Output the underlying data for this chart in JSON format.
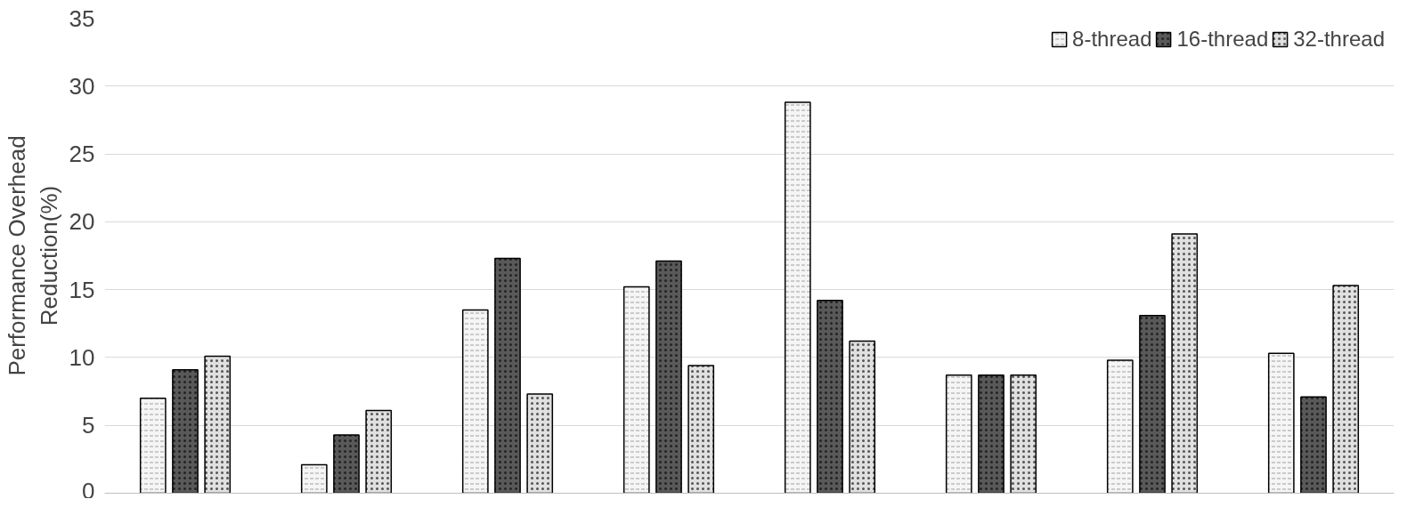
{
  "chart_data": {
    "type": "bar",
    "ylabel": "Performance Overhead\nReduction(%)",
    "categories": [
      null,
      null,
      null,
      null,
      null,
      null,
      null,
      null
    ],
    "series": [
      {
        "name": "8-thread",
        "color": "#f5f5f5",
        "values": [
          7.0,
          2.1,
          13.5,
          15.2,
          28.8,
          8.7,
          9.8,
          10.3
        ]
      },
      {
        "name": "16-thread",
        "color": "#595959",
        "values": [
          9.1,
          4.3,
          17.3,
          17.1,
          14.2,
          8.7,
          13.1,
          7.1
        ]
      },
      {
        "name": "32-thread",
        "color": "#e0e0e0",
        "values": [
          10.1,
          6.1,
          7.3,
          9.4,
          11.2,
          8.7,
          19.1,
          15.3
        ]
      }
    ],
    "ylim": [
      0,
      35
    ],
    "yticks": [
      0,
      5,
      10,
      15,
      20,
      25,
      30,
      35
    ],
    "grid": "y",
    "legend": "top right",
    "tick_labels": "y"
  }
}
